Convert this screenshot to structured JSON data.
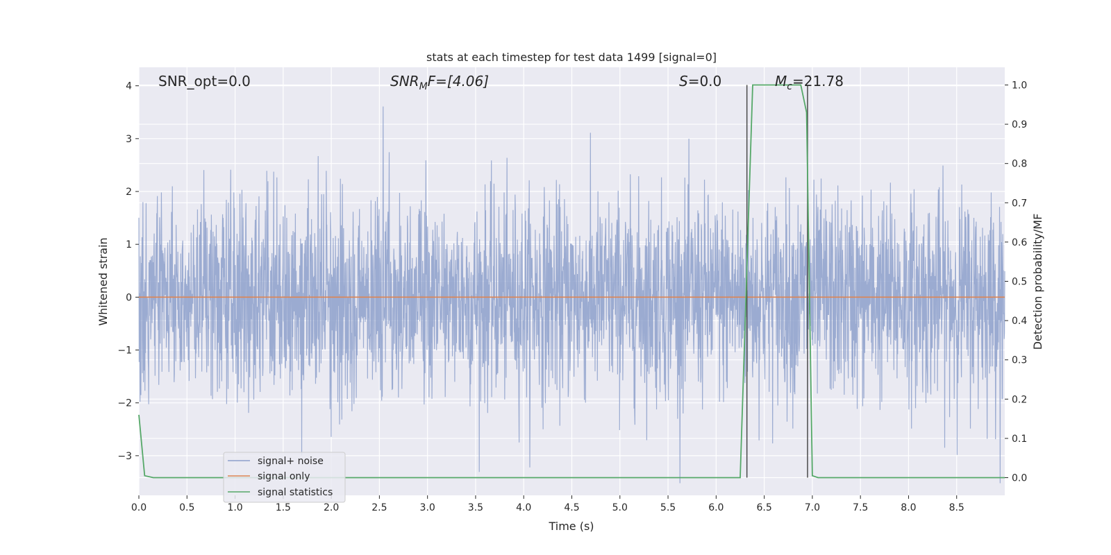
{
  "chart_data": {
    "type": "line",
    "title": "stats at each timestep for test data 1499 [signal=0]",
    "xlabel": "Time (s)",
    "ylabel": "Whitened strain",
    "y2label": "Detection probability/MF",
    "xlim": [
      0.0,
      9.0
    ],
    "ylim": [
      -3.75,
      4.35
    ],
    "y2lim": [
      -0.045,
      1.045
    ],
    "xticks": [
      "0.0",
      "0.5",
      "1.0",
      "1.5",
      "2.0",
      "2.5",
      "3.0",
      "3.5",
      "4.0",
      "4.5",
      "5.0",
      "5.5",
      "6.0",
      "6.5",
      "7.0",
      "7.5",
      "8.0",
      "8.5"
    ],
    "yticks": [
      "4",
      "3",
      "2",
      "1",
      "0",
      "−1",
      "−2",
      "−3"
    ],
    "y2ticks": [
      "1.0",
      "0.9",
      "0.8",
      "0.7",
      "0.6",
      "0.5",
      "0.4",
      "0.3",
      "0.2",
      "0.1",
      "0.0"
    ],
    "grid": true,
    "legend_position": "lower-left",
    "annotations": {
      "snr_opt": "SNR_opt=0.0",
      "snr_mf_main": "SNR",
      "snr_mf_sub": "M",
      "snr_mf_rest": "F=[4.06]",
      "s_symbol": "S",
      "s_value": "=0.0",
      "mc_symbol": "M",
      "mc_sub": "c",
      "mc_value": "=21.78"
    },
    "vlines": [
      6.32,
      6.95
    ],
    "series": [
      {
        "name": "signal+ noise",
        "color": "#8da0cb",
        "axis": "left",
        "description": "noise samples, approx. range -3.5 to 4.0",
        "envelope": {
          "min": -3.52,
          "max": 4.0,
          "typical_upper": 2.1,
          "typical_lower": -2.1
        }
      },
      {
        "name": "signal only",
        "color": "#dd8452",
        "axis": "left",
        "x": [
          0.0,
          9.0
        ],
        "y": [
          0.0,
          0.0
        ]
      },
      {
        "name": "signal statistics",
        "color": "#55a868",
        "axis": "right",
        "x": [
          0.0,
          0.06,
          0.15,
          6.25,
          6.38,
          6.88,
          6.94,
          7.0,
          7.06,
          9.0
        ],
        "y": [
          0.16,
          0.005,
          0.0,
          0.0,
          1.0,
          1.0,
          0.93,
          0.005,
          0.0,
          0.0
        ]
      }
    ]
  },
  "colors": {
    "plot_bg": "#eaeaf2",
    "grid": "#ffffff",
    "vline": "#4a4a4a",
    "text": "#262626"
  }
}
